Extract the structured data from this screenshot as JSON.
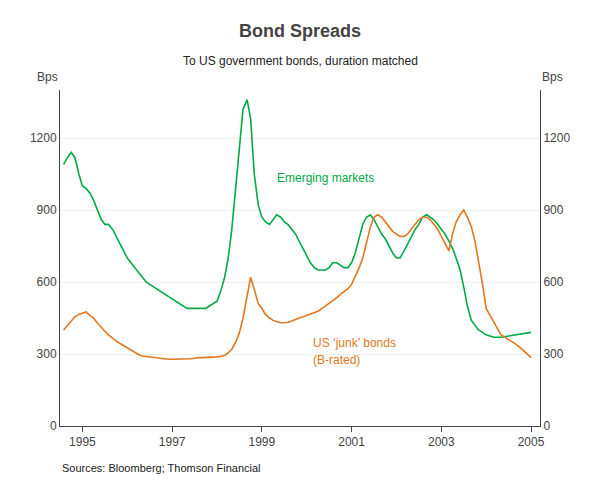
{
  "chart_data": {
    "type": "line",
    "title": "Bond Spreads",
    "subtitle": "To US government bonds, duration matched",
    "ylabel": "Bps",
    "y2label": "Bps",
    "source": "Sources: Bloomberg; Thomson Financial",
    "xlim": [
      1994.5,
      2005.2
    ],
    "xticks": [
      1995,
      1997,
      1999,
      2001,
      2003,
      2005
    ],
    "ylim": [
      0,
      1400
    ],
    "yticks": [
      0,
      300,
      600,
      900,
      1200
    ],
    "y2lim": [
      0,
      1400
    ],
    "y2ticks": [
      0,
      300,
      600,
      900,
      1200
    ],
    "grid": true,
    "x": [
      1994.58,
      1994.67,
      1994.75,
      1994.83,
      1994.92,
      1995.0,
      1995.08,
      1995.17,
      1995.25,
      1995.33,
      1995.42,
      1995.5,
      1995.58,
      1995.67,
      1995.75,
      1995.83,
      1995.92,
      1996.0,
      1996.08,
      1996.17,
      1996.25,
      1996.33,
      1996.42,
      1996.5,
      1996.58,
      1996.67,
      1996.75,
      1996.83,
      1996.92,
      1997.0,
      1997.08,
      1997.17,
      1997.25,
      1997.33,
      1997.42,
      1997.5,
      1997.58,
      1997.67,
      1997.75,
      1997.83,
      1997.92,
      1998.0,
      1998.08,
      1998.17,
      1998.25,
      1998.33,
      1998.42,
      1998.5,
      1998.58,
      1998.67,
      1998.75,
      1998.83,
      1998.92,
      1999.0,
      1999.08,
      1999.17,
      1999.25,
      1999.33,
      1999.42,
      1999.5,
      1999.58,
      1999.67,
      1999.75,
      1999.83,
      1999.92,
      2000.0,
      2000.08,
      2000.17,
      2000.25,
      2000.33,
      2000.42,
      2000.5,
      2000.58,
      2000.67,
      2000.75,
      2000.83,
      2000.92,
      2001.0,
      2001.08,
      2001.17,
      2001.25,
      2001.33,
      2001.42,
      2001.5,
      2001.58,
      2001.67,
      2001.75,
      2001.83,
      2001.92,
      2002.0,
      2002.08,
      2002.17,
      2002.25,
      2002.33,
      2002.42,
      2002.5,
      2002.58,
      2002.67,
      2002.75,
      2002.83,
      2002.92,
      2003.0,
      2003.08,
      2003.17,
      2003.25,
      2003.33,
      2003.42,
      2003.5,
      2003.58,
      2003.67,
      2003.75,
      2003.83,
      2003.92,
      2004.0,
      2004.17,
      2004.33,
      2004.5,
      2004.67,
      2004.83,
      2005.0
    ],
    "series": [
      {
        "name": "Emerging markets",
        "color": "#00aa44",
        "values": [
          1090,
          1120,
          1140,
          1120,
          1050,
          1000,
          990,
          970,
          940,
          900,
          860,
          840,
          840,
          820,
          790,
          760,
          730,
          700,
          680,
          660,
          640,
          620,
          600,
          590,
          580,
          570,
          560,
          550,
          540,
          530,
          520,
          510,
          500,
          490,
          490,
          490,
          490,
          490,
          490,
          500,
          510,
          520,
          560,
          620,
          700,
          820,
          1000,
          1150,
          1320,
          1360,
          1280,
          1050,
          920,
          870,
          850,
          840,
          860,
          880,
          870,
          850,
          840,
          820,
          800,
          770,
          740,
          710,
          680,
          660,
          650,
          650,
          650,
          660,
          680,
          680,
          670,
          660,
          660,
          680,
          720,
          780,
          840,
          870,
          880,
          860,
          830,
          800,
          780,
          750,
          720,
          700,
          700,
          730,
          760,
          790,
          820,
          840,
          870,
          880,
          870,
          860,
          840,
          820,
          800,
          770,
          740,
          700,
          650,
          580,
          500,
          440,
          420,
          400,
          390,
          380,
          370,
          370,
          375,
          380,
          385,
          390
        ]
      },
      {
        "name": "US ‘junk’ bonds (B-rated)",
        "color": "#e07820",
        "values": [
          400,
          420,
          440,
          455,
          465,
          470,
          475,
          460,
          450,
          430,
          410,
          395,
          380,
          365,
          355,
          345,
          335,
          325,
          315,
          305,
          298,
          292,
          290,
          288,
          285,
          282,
          280,
          278,
          278,
          278,
          278,
          278,
          278,
          278,
          280,
          282,
          285,
          285,
          285,
          285,
          285,
          288,
          290,
          295,
          305,
          320,
          350,
          390,
          450,
          540,
          620,
          570,
          510,
          490,
          465,
          450,
          440,
          435,
          430,
          430,
          432,
          438,
          445,
          450,
          455,
          460,
          465,
          470,
          478,
          488,
          500,
          510,
          522,
          535,
          548,
          560,
          572,
          590,
          620,
          660,
          700,
          760,
          830,
          870,
          880,
          870,
          850,
          830,
          810,
          800,
          790,
          790,
          800,
          820,
          840,
          860,
          870,
          870,
          860,
          840,
          820,
          790,
          760,
          730,
          800,
          850,
          880,
          900,
          870,
          830,
          770,
          690,
          590,
          490,
          430,
          380,
          360,
          340,
          315,
          285
        ]
      }
    ],
    "annotations": [
      {
        "text": "Emerging markets",
        "x": 1999.3,
        "y": 1035,
        "color": "#00aa44"
      },
      {
        "text": "US ‘junk’ bonds",
        "x": 2000.1,
        "y": 345,
        "color": "#e07820"
      },
      {
        "text": "(B-rated)",
        "x": 2000.1,
        "y": 275,
        "color": "#e07820"
      }
    ]
  }
}
